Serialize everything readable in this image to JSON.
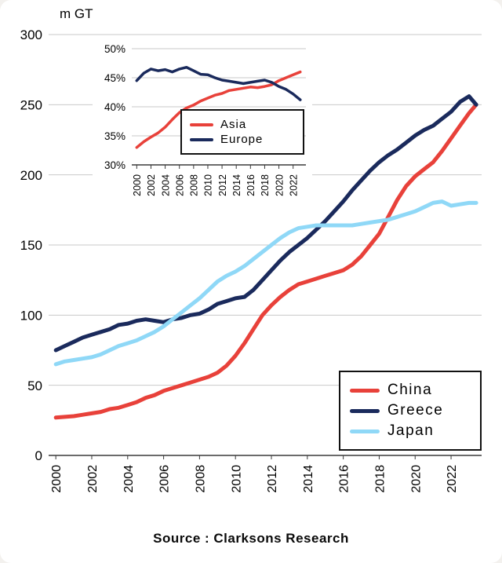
{
  "page": {
    "source_text": "Source : Clarksons Research"
  },
  "chart_data": [
    {
      "ref": "main_chart"
    },
    {
      "ref": "inset_chart"
    }
  ],
  "main_chart": {
    "type": "line",
    "ylabel": "m GT",
    "ylim": [
      0,
      300
    ],
    "yticks": [
      0,
      50,
      100,
      150,
      200,
      250,
      300
    ],
    "xlim": [
      1999.6,
      2023.7
    ],
    "xticks": [
      2000,
      2002,
      2004,
      2006,
      2008,
      2010,
      2012,
      2014,
      2016,
      2018,
      2020,
      2022
    ],
    "grid": true,
    "legend_position": "bottom-right",
    "x": [
      2000,
      2000.5,
      2001,
      2001.5,
      2002,
      2002.5,
      2003,
      2003.5,
      2004,
      2004.5,
      2005,
      2005.5,
      2006,
      2006.5,
      2007,
      2007.5,
      2008,
      2008.5,
      2009,
      2009.5,
      2010,
      2010.5,
      2011,
      2011.5,
      2012,
      2012.5,
      2013,
      2013.5,
      2014,
      2014.5,
      2015,
      2015.5,
      2016,
      2016.5,
      2017,
      2017.5,
      2018,
      2018.5,
      2019,
      2019.5,
      2020,
      2020.5,
      2021,
      2021.5,
      2022,
      2022.5,
      2023,
      2023.4
    ],
    "series": [
      {
        "name": "China",
        "color": "#e8413a",
        "values": [
          27,
          27.5,
          28,
          29,
          30,
          31,
          33,
          34,
          36,
          38,
          41,
          43,
          46,
          48,
          50,
          52,
          54,
          56,
          59,
          64,
          71,
          80,
          90,
          100,
          107,
          113,
          118,
          122,
          124,
          126,
          128,
          130,
          132,
          136,
          142,
          150,
          158,
          170,
          182,
          192,
          199,
          204,
          209,
          217,
          226,
          235,
          244,
          250
        ]
      },
      {
        "name": "Greece",
        "color": "#1a2a5c",
        "values": [
          75,
          78,
          81,
          84,
          86,
          88,
          90,
          93,
          94,
          96,
          97,
          96,
          95,
          97,
          98,
          100,
          101,
          104,
          108,
          110,
          112,
          113,
          118,
          125,
          132,
          139,
          145,
          150,
          155,
          161,
          167,
          174,
          181,
          189,
          196,
          203,
          209,
          214,
          218,
          223,
          228,
          232,
          235,
          240,
          245,
          252,
          256,
          250
        ]
      },
      {
        "name": "Japan",
        "color": "#8fd8f7",
        "values": [
          65,
          67,
          68,
          69,
          70,
          72,
          75,
          78,
          80,
          82,
          85,
          88,
          92,
          97,
          102,
          107,
          112,
          118,
          124,
          128,
          131,
          135,
          140,
          145,
          150,
          155,
          159,
          162,
          163,
          164,
          164,
          164,
          164,
          164,
          165,
          166,
          167,
          168,
          170,
          172,
          174,
          177,
          180,
          181,
          178,
          179,
          180,
          180
        ]
      }
    ]
  },
  "inset_chart": {
    "type": "line",
    "ylim": [
      30,
      50
    ],
    "yticks": [
      30,
      35,
      40,
      45,
      50
    ],
    "tick_suffix": "%",
    "xlim": [
      1999.3,
      2023.8
    ],
    "xticks": [
      2000,
      2002,
      2004,
      2006,
      2008,
      2010,
      2012,
      2014,
      2016,
      2018,
      2020,
      2022
    ],
    "grid": true,
    "legend_position": "bottom-right",
    "x": [
      2000,
      2001,
      2002,
      2003,
      2004,
      2005,
      2006,
      2007,
      2008,
      2009,
      2010,
      2011,
      2012,
      2013,
      2014,
      2015,
      2016,
      2017,
      2018,
      2019,
      2020,
      2021,
      2022,
      2023
    ],
    "series": [
      {
        "name": "Asia",
        "color": "#e8413a",
        "values": [
          33,
          34,
          34.8,
          35.5,
          36.5,
          37.8,
          39,
          39.8,
          40.3,
          41,
          41.5,
          42,
          42.3,
          42.8,
          43,
          43.2,
          43.4,
          43.3,
          43.5,
          43.8,
          44.5,
          45,
          45.5,
          46
        ]
      },
      {
        "name": "Europe",
        "color": "#1a2a5c",
        "values": [
          44.5,
          45.8,
          46.5,
          46.2,
          46.4,
          46,
          46.5,
          46.8,
          46.2,
          45.6,
          45.5,
          45,
          44.6,
          44.4,
          44.2,
          44,
          44.2,
          44.4,
          44.6,
          44.2,
          43.5,
          43,
          42.2,
          41.2
        ]
      }
    ]
  }
}
